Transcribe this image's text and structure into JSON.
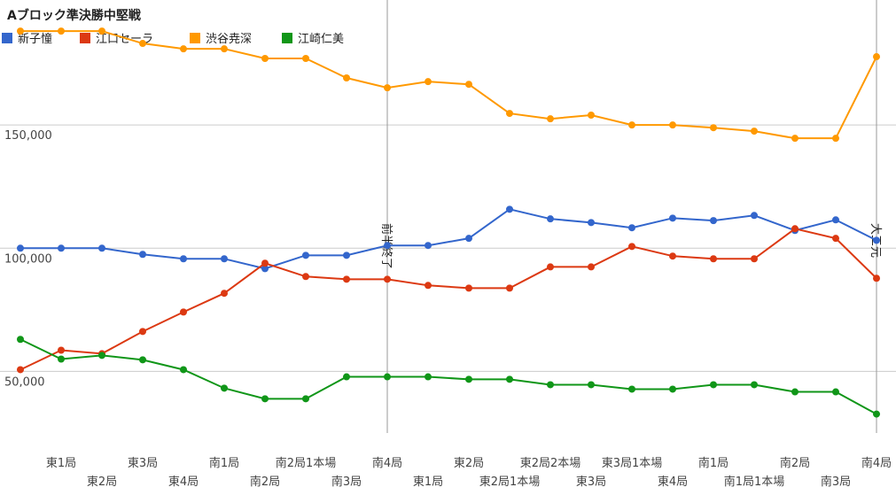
{
  "chart_data": {
    "type": "line",
    "title": "Aブロック準決勝中堅戦",
    "categories": [
      null,
      "東1局",
      "東2局",
      "東3局",
      "東4局",
      "南1局",
      "南2局",
      "南2局1本場",
      "南3局",
      "南4局",
      "東1局",
      "東2局",
      "東2局1本場",
      "東2局2本場",
      "東3局",
      "東3局1本場",
      "東4局",
      "南1局",
      "南1局1本場",
      "南2局",
      "南3局",
      "南4局"
    ],
    "series": [
      {
        "name": "新子憧",
        "color": "#3366cc",
        "values": [
          100000,
          100000,
          100000,
          97500,
          95700,
          95700,
          91700,
          97100,
          97100,
          101100,
          101100,
          104000,
          115800,
          111900,
          110400,
          108300,
          112200,
          111200,
          113300,
          107200,
          111500,
          103200
        ]
      },
      {
        "name": "江口セーラ",
        "color": "#dc3912",
        "values": [
          50700,
          58600,
          57200,
          66200,
          74100,
          81700,
          93900,
          88500,
          87400,
          87400,
          84900,
          83800,
          83800,
          92400,
          92400,
          100700,
          96800,
          95700,
          95700,
          107900,
          104000,
          87800
        ]
      },
      {
        "name": "渋谷尭深",
        "color": "#ff9900",
        "values": [
          188100,
          188100,
          188100,
          183100,
          180900,
          180900,
          177000,
          177000,
          169100,
          165100,
          167600,
          166500,
          154700,
          152500,
          154000,
          150000,
          150000,
          148900,
          147500,
          144600,
          144600,
          177700
        ]
      },
      {
        "name": "江崎仁美",
        "color": "#109618",
        "values": [
          63000,
          55000,
          56500,
          54700,
          50700,
          43200,
          38900,
          38900,
          47800,
          47800,
          47800,
          46800,
          46800,
          44600,
          44600,
          42800,
          42800,
          44600,
          44600,
          41700,
          41700,
          32700
        ]
      }
    ],
    "ylim": [
      25000,
      200000
    ],
    "yticks": [
      {
        "value": 50000,
        "label": "50,000"
      },
      {
        "value": 100000,
        "label": "100,000"
      },
      {
        "value": 150000,
        "label": "150,000"
      }
    ],
    "grid": true,
    "legend": "top",
    "annotations": [
      {
        "category_index": 9,
        "text": "前半終了"
      },
      {
        "category_index": 21,
        "text": "大三元"
      }
    ]
  }
}
